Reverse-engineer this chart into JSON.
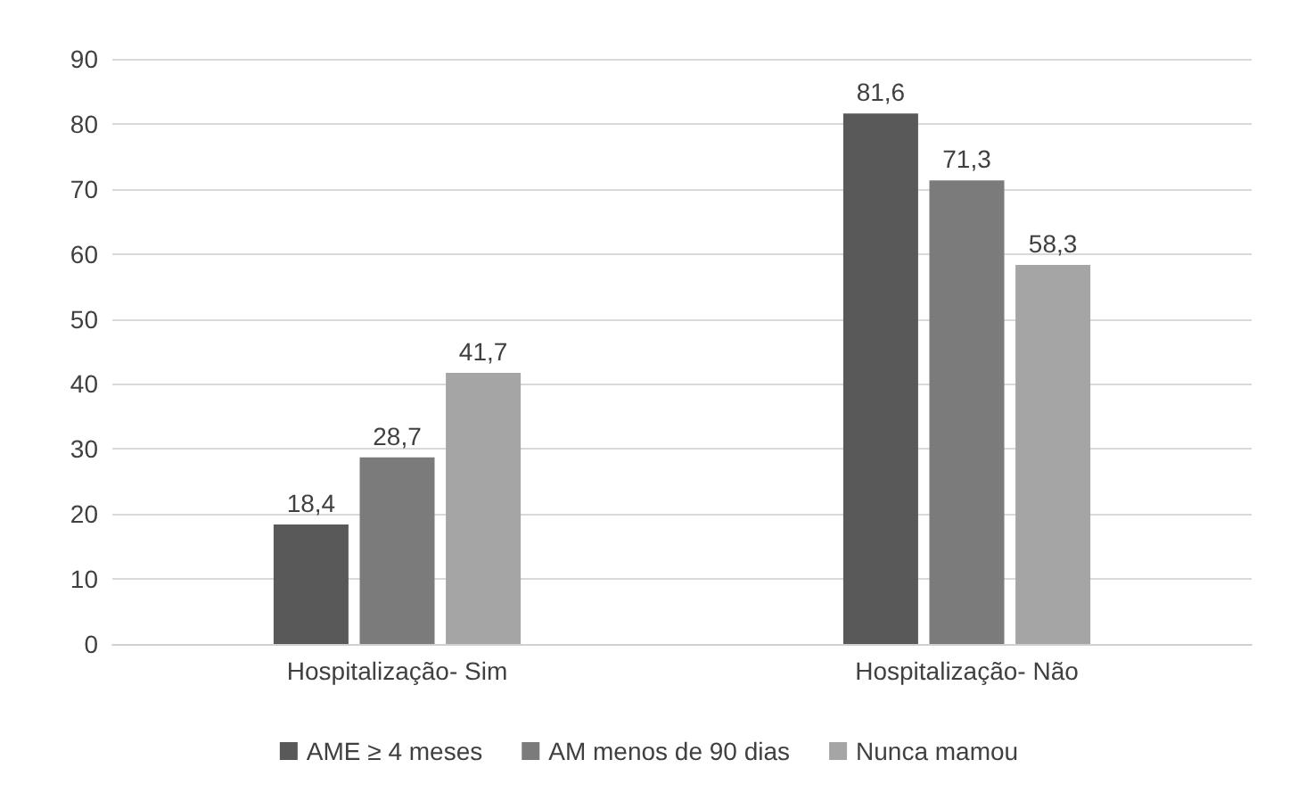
{
  "chart_data": {
    "type": "bar",
    "categories": [
      "Hospitalização- Sim",
      "Hospitalização- Não"
    ],
    "series": [
      {
        "name": "AME ≥ 4 meses",
        "color": "#595959",
        "values": [
          18.4,
          81.6
        ],
        "value_labels": [
          "18,4",
          "81,6"
        ]
      },
      {
        "name": "AM menos de 90 dias",
        "color": "#7b7b7b",
        "values": [
          28.7,
          71.3
        ],
        "value_labels": [
          "28,7",
          "71,3"
        ]
      },
      {
        "name": "Nunca mamou",
        "color": "#a5a5a5",
        "values": [
          41.7,
          58.3
        ],
        "value_labels": [
          "41,7",
          "58,3"
        ]
      }
    ],
    "ylim": [
      0,
      90
    ],
    "yticks": [
      0,
      10,
      20,
      30,
      40,
      50,
      60,
      70,
      80,
      90
    ],
    "grid": "y",
    "legend": "bottom"
  }
}
